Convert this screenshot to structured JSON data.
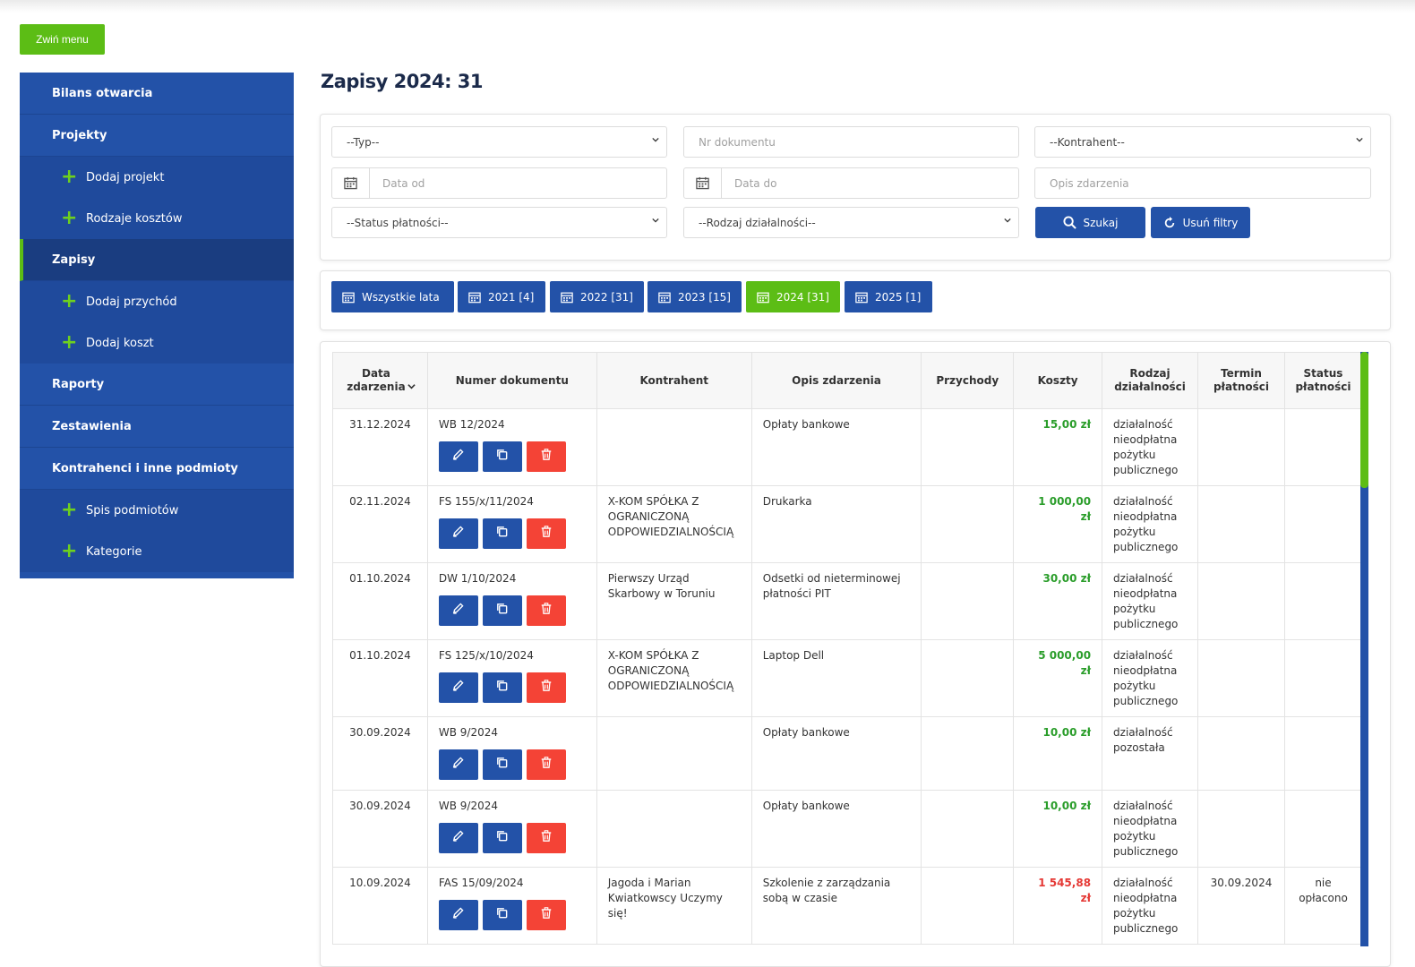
{
  "collapse_menu": "Zwiń menu",
  "sidebar": {
    "opening_balance": "Bilans otwarcia",
    "projects": "Projekty",
    "add_project": "Dodaj projekt",
    "cost_types": "Rodzaje kosztów",
    "entries": "Zapisy",
    "add_income": "Dodaj przychód",
    "add_cost": "Dodaj koszt",
    "reports": "Raporty",
    "summaries": "Zestawienia",
    "contractors": "Kontrahenci i inne podmioty",
    "entity_list": "Spis podmiotów",
    "categories": "Kategorie"
  },
  "page_title": "Zapisy 2024: 31",
  "filters": {
    "type": "--Typ--",
    "doc_number_placeholder": "Nr dokumentu",
    "contractor": "--Kontrahent--",
    "date_from_placeholder": "Data od",
    "date_to_placeholder": "Data do",
    "description_placeholder": "Opis zdarzenia",
    "payment_status": "--Status płatności--",
    "activity_type": "--Rodzaj działalności--",
    "search_label": "Szukaj",
    "clear_label": "Usuń filtry"
  },
  "years": [
    "Wszystkie lata",
    "2021 [4]",
    "2022 [31]",
    "2023 [15]",
    "2024 [31]",
    "2025 [1]"
  ],
  "table": {
    "headers": [
      "Data zdarzenia",
      "Numer dokumentu",
      "Kontrahent",
      "Opis zdarzenia",
      "Przychody",
      "Koszty",
      "Rodzaj działalności",
      "Termin płatności",
      "Status płatności"
    ],
    "rows": [
      {
        "date": "31.12.2024",
        "doc": "WB 12/2024",
        "contractor": "",
        "description": "Opłaty bankowe",
        "income": "",
        "cost": "15,00 zł",
        "activity": "działalność nieodpłatna pożytku publicznego",
        "due": "",
        "status": ""
      },
      {
        "date": "02.11.2024",
        "doc": "FS 155/x/11/2024",
        "contractor": "X-KOM SPÓŁKA Z OGRANICZONĄ ODPOWIEDZIALNOŚCIĄ",
        "description": "Drukarka",
        "income": "",
        "cost": "1 000,00 zł",
        "activity": "działalność nieodpłatna pożytku publicznego",
        "due": "",
        "status": ""
      },
      {
        "date": "01.10.2024",
        "doc": "DW 1/10/2024",
        "contractor": "Pierwszy Urząd Skarbowy w Toruniu",
        "description": "Odsetki od nieterminowej płatności PIT",
        "income": "",
        "cost": "30,00 zł",
        "activity": "działalność nieodpłatna pożytku publicznego",
        "due": "",
        "status": ""
      },
      {
        "date": "01.10.2024",
        "doc": "FS 125/x/10/2024",
        "contractor": "X-KOM SPÓŁKA Z OGRANICZONĄ ODPOWIEDZIALNOŚCIĄ",
        "description": "Laptop Dell",
        "income": "",
        "cost": "5 000,00 zł",
        "activity": "działalność nieodpłatna pożytku publicznego",
        "due": "",
        "status": ""
      },
      {
        "date": "30.09.2024",
        "doc": "WB 9/2024",
        "contractor": "",
        "description": "Opłaty bankowe",
        "income": "",
        "cost": "10,00 zł",
        "activity": "działalność pozostała",
        "due": "",
        "status": ""
      },
      {
        "date": "30.09.2024",
        "doc": "WB 9/2024",
        "contractor": "",
        "description": "Opłaty bankowe",
        "income": "",
        "cost": "10,00 zł",
        "activity": "działalność nieodpłatna pożytku publicznego",
        "due": "",
        "status": ""
      },
      {
        "date": "10.09.2024",
        "doc": "FAS 15/09/2024",
        "contractor": "Jagoda i Marian Kwiatkowscy Uczymy się!",
        "description": "Szkolenie z zarządzania sobą w czasie",
        "income": "",
        "cost": "1 545,88 zł",
        "activity": "działalność nieodpłatna pożytku publicznego",
        "due": "30.09.2024",
        "status": "nie opłacono"
      }
    ]
  },
  "colors": {
    "primary": "#2352a8",
    "accent": "#5cbd15",
    "danger": "#f44336",
    "cost_paid": "#2a9d2a",
    "cost_unpaid": "#e53935"
  }
}
